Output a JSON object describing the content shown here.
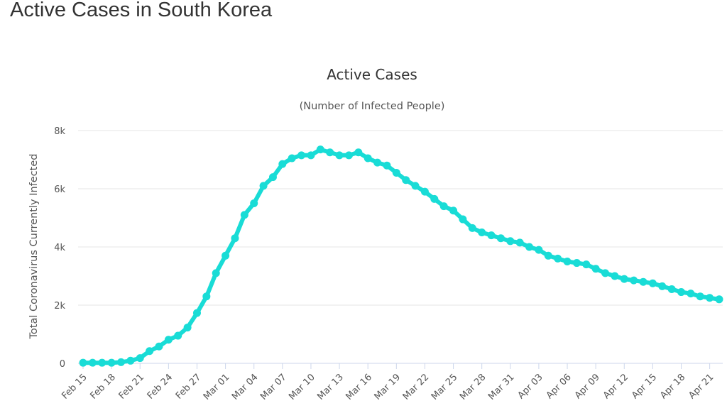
{
  "page": {
    "title": "Active Cases in South Korea"
  },
  "chart_data": {
    "type": "line",
    "title": "Active Cases",
    "subtitle": "(Number of Infected People)",
    "xlabel": "",
    "ylabel": "Total Coronavirus Currently Infected",
    "y_ticks": [
      "0",
      "2k",
      "4k",
      "6k",
      "8k"
    ],
    "x_tick_labels": [
      "Feb 15",
      "Feb 18",
      "Feb 21",
      "Feb 24",
      "Feb 27",
      "Mar 01",
      "Mar 04",
      "Mar 07",
      "Mar 10",
      "Mar 13",
      "Mar 16",
      "Mar 19",
      "Mar 22",
      "Mar 25",
      "Mar 28",
      "Mar 31",
      "Apr 03",
      "Apr 06",
      "Apr 09",
      "Apr 12",
      "Apr 15",
      "Apr 18",
      "Apr 21"
    ],
    "ylim": [
      0,
      8000
    ],
    "grid": true,
    "legend": false,
    "colors": {
      "series": "#19dcd6",
      "grid": "#e6e6e6",
      "axis": "#ccd6eb"
    },
    "series": [
      {
        "x": [
          "Feb 15",
          "Feb 16",
          "Feb 17",
          "Feb 18",
          "Feb 19",
          "Feb 20",
          "Feb 21",
          "Feb 22",
          "Feb 23",
          "Feb 24",
          "Feb 25",
          "Feb 26",
          "Feb 27",
          "Feb 28",
          "Feb 29",
          "Mar 01",
          "Mar 02",
          "Mar 03",
          "Mar 04",
          "Mar 05",
          "Mar 06",
          "Mar 07",
          "Mar 08",
          "Mar 09",
          "Mar 10",
          "Mar 11",
          "Mar 12",
          "Mar 13",
          "Mar 14",
          "Mar 15",
          "Mar 16",
          "Mar 17",
          "Mar 18",
          "Mar 19",
          "Mar 20",
          "Mar 21",
          "Mar 22",
          "Mar 23",
          "Mar 24",
          "Mar 25",
          "Mar 26",
          "Mar 27",
          "Mar 28",
          "Mar 29",
          "Mar 30",
          "Mar 31",
          "Apr 01",
          "Apr 02",
          "Apr 03",
          "Apr 04",
          "Apr 05",
          "Apr 06",
          "Apr 07",
          "Apr 08",
          "Apr 09",
          "Apr 10",
          "Apr 11",
          "Apr 12",
          "Apr 13",
          "Apr 14",
          "Apr 15",
          "Apr 16",
          "Apr 17",
          "Apr 18",
          "Apr 19",
          "Apr 20",
          "Apr 21",
          "Apr 22"
        ],
        "values": [
          20,
          20,
          20,
          20,
          40,
          90,
          180,
          420,
          580,
          810,
          950,
          1230,
          1730,
          2300,
          3100,
          3700,
          4300,
          5100,
          5500,
          6100,
          6400,
          6850,
          7050,
          7150,
          7150,
          7350,
          7250,
          7150,
          7150,
          7250,
          7050,
          6900,
          6800,
          6550,
          6300,
          6100,
          5900,
          5650,
          5400,
          5250,
          4950,
          4650,
          4500,
          4400,
          4300,
          4200,
          4150,
          4000,
          3900,
          3700,
          3600,
          3500,
          3450,
          3400,
          3250,
          3100,
          3000,
          2900,
          2850,
          2800,
          2750,
          2650,
          2550,
          2450,
          2400,
          2300,
          2250,
          2200
        ]
      }
    ]
  }
}
